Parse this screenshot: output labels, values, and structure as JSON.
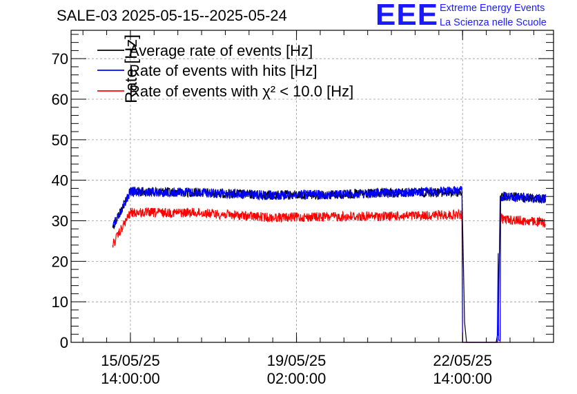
{
  "header": {
    "title": "SALE-03 2025-05-15--2025-05-24",
    "logo_text": "EEE",
    "logo_line1": "Extreme Energy Events",
    "logo_line2": "La Scienza nelle Scuole"
  },
  "chart_data": {
    "type": "line",
    "title": "SALE-03 2025-05-15--2025-05-24",
    "ylabel": "Rate [Hz]",
    "xlabel": "",
    "ylim": [
      0,
      77
    ],
    "xlim": [
      "2025-05-14 08:00",
      "2025-05-24 12:00"
    ],
    "yticks": [
      0,
      10,
      20,
      30,
      40,
      50,
      60,
      70
    ],
    "xticks": [
      {
        "x": "2025-05-15 14:00",
        "line1": "15/05/25",
        "line2": "14:00:00"
      },
      {
        "x": "2025-05-19 02:00",
        "line1": "19/05/25",
        "line2": "02:00:00"
      },
      {
        "x": "2025-05-22 14:00",
        "line1": "22/05/25",
        "line2": "14:00:00"
      }
    ],
    "grid": true,
    "legend_position": "top-left",
    "series": [
      {
        "name": "Average rate of events [Hz]",
        "color": "#000000",
        "points": [
          [
            "2025-05-15 05:00",
            28.5
          ],
          [
            "2025-05-15 14:00",
            37.2
          ],
          [
            "2025-05-17 00:00",
            37.0
          ],
          [
            "2025-05-18 12:00",
            36.3
          ],
          [
            "2025-05-20 00:00",
            36.5
          ],
          [
            "2025-05-21 12:00",
            37.0
          ],
          [
            "2025-05-22 13:30",
            37.0
          ],
          [
            "2025-05-22 13:40",
            37.5
          ],
          [
            "2025-05-22 15:00",
            5.0
          ],
          [
            "2025-05-22 16:00",
            0.0
          ],
          [
            "2025-05-23 07:00",
            0.0
          ],
          [
            "2025-05-23 07:30",
            1.5
          ],
          [
            "2025-05-23 08:00",
            2.0
          ],
          [
            "2025-05-23 09:00",
            36.0
          ],
          [
            "2025-05-24 08:00",
            35.5
          ]
        ]
      },
      {
        "name": "Rate of events with hits [Hz]",
        "color": "#0000ff",
        "points": [
          [
            "2025-05-15 05:00",
            28.5
          ],
          [
            "2025-05-15 14:00",
            37.2
          ],
          [
            "2025-05-17 00:00",
            37.0
          ],
          [
            "2025-05-18 12:00",
            36.3
          ],
          [
            "2025-05-20 00:00",
            36.5
          ],
          [
            "2025-05-21 12:00",
            37.0
          ],
          [
            "2025-05-22 13:40",
            37.5
          ],
          [
            "2025-05-22 14:00",
            0.0
          ],
          [
            "2025-05-23 07:30",
            0.0
          ],
          [
            "2025-05-23 08:00",
            22.0
          ],
          [
            "2025-05-23 08:15",
            0.5
          ],
          [
            "2025-05-23 09:00",
            0.5
          ],
          [
            "2025-05-23 09:15",
            36.0
          ],
          [
            "2025-05-24 08:00",
            35.5
          ]
        ]
      },
      {
        "name": "Rate of events with χ² < 10.0 [Hz]",
        "color": "#ff0000",
        "points": [
          [
            "2025-05-15 05:00",
            24.0
          ],
          [
            "2025-05-15 14:00",
            32.0
          ],
          [
            "2025-05-17 00:00",
            32.0
          ],
          [
            "2025-05-18 12:00",
            30.8
          ],
          [
            "2025-05-20 00:00",
            31.0
          ],
          [
            "2025-05-21 12:00",
            31.2
          ],
          [
            "2025-05-22 13:40",
            31.5
          ],
          [
            "2025-05-22 14:00",
            0.0
          ],
          [
            "2025-05-23 09:00",
            0.0
          ],
          [
            "2025-05-23 09:15",
            30.5
          ],
          [
            "2025-05-24 08:00",
            29.5
          ]
        ]
      }
    ]
  }
}
